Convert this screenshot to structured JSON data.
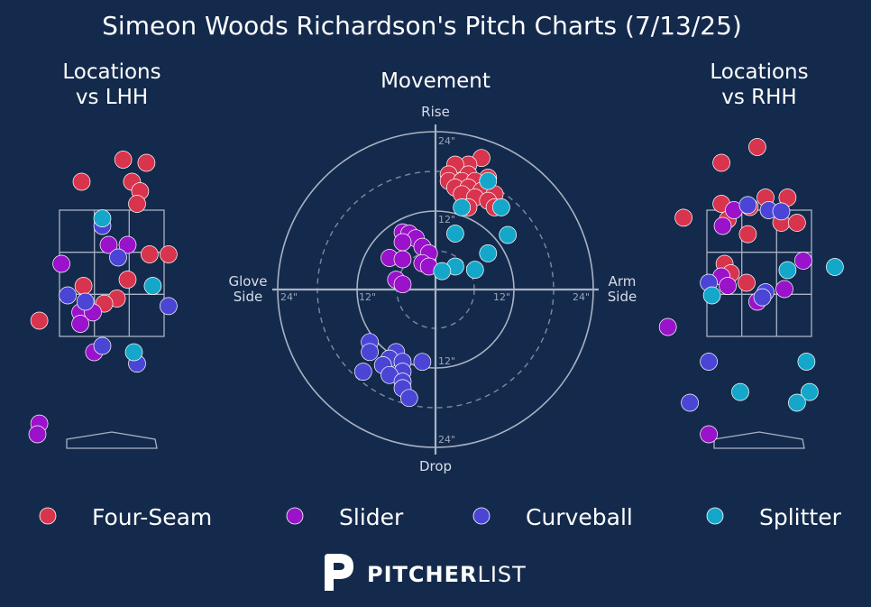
{
  "title": "Simeon Woods Richardson's Pitch Charts (7/13/25)",
  "colors": {
    "background": "#142a4c",
    "Four-Seam": "#d9344d",
    "Slider": "#9a12c9",
    "Curveball": "#4b45d6",
    "Splitter": "#15a7c9"
  },
  "panels": {
    "lhh": {
      "title_line1": "Locations",
      "title_line2": "vs LHH"
    },
    "movement": {
      "title": "Movement",
      "rise": "Rise",
      "drop": "Drop",
      "glove_line1": "Glove",
      "glove_line2": "Side",
      "arm_line1": "Arm",
      "arm_line2": "Side",
      "rings": {
        "top24": "24\"",
        "top12": "12\"",
        "bottom12": "12\"",
        "bottom24": "24\"",
        "left24": "24\"",
        "left12": "12\"",
        "right12": "12\"",
        "right24": "24\""
      }
    },
    "rhh": {
      "title_line1": "Locations",
      "title_line2": "vs RHH"
    }
  },
  "legend": [
    "Four-Seam",
    "Slider",
    "Curveball",
    "Splitter"
  ],
  "brand": {
    "bold": "PITCHER",
    "light": "LIST"
  },
  "chart_data": [
    {
      "type": "scatter",
      "title": "Locations vs LHH",
      "xlim": [
        -2.2,
        2.2
      ],
      "ylim": [
        -0.5,
        5.0
      ],
      "strike_zone": {
        "x": [
          -0.83,
          0.83
        ],
        "y": [
          1.5,
          3.5
        ]
      },
      "series": [
        {
          "name": "Four-Seam",
          "points": [
            [
              0.18,
              4.3
            ],
            [
              0.55,
              4.25
            ],
            [
              -0.48,
              3.95
            ],
            [
              0.32,
              3.95
            ],
            [
              0.45,
              3.8
            ],
            [
              0.4,
              3.6
            ],
            [
              0.6,
              2.8
            ],
            [
              0.9,
              2.8
            ],
            [
              0.25,
              2.4
            ],
            [
              -0.45,
              2.3
            ],
            [
              0.08,
              2.1
            ],
            [
              -0.12,
              2.02
            ],
            [
              -1.15,
              1.75
            ]
          ]
        },
        {
          "name": "Slider",
          "points": [
            [
              -0.05,
              2.95
            ],
            [
              0.25,
              2.95
            ],
            [
              -0.8,
              2.65
            ],
            [
              -0.5,
              1.88
            ],
            [
              -0.3,
              1.88
            ],
            [
              -0.5,
              1.7
            ],
            [
              -0.28,
              1.25
            ],
            [
              -1.15,
              0.12
            ],
            [
              -1.18,
              -0.05
            ]
          ]
        },
        {
          "name": "Curveball",
          "points": [
            [
              -0.15,
              3.25
            ],
            [
              0.1,
              2.75
            ],
            [
              -0.7,
              2.15
            ],
            [
              -0.42,
              2.05
            ],
            [
              0.9,
              1.98
            ],
            [
              -0.15,
              1.35
            ],
            [
              0.4,
              1.07
            ]
          ]
        },
        {
          "name": "Splitter",
          "points": [
            [
              -0.15,
              3.37
            ],
            [
              0.65,
              2.3
            ],
            [
              0.35,
              1.25
            ]
          ]
        }
      ]
    },
    {
      "type": "scatter",
      "title": "Movement",
      "xlabel_left": "Glove Side",
      "xlabel_right": "Arm Side",
      "ylabel_top": "Rise",
      "ylabel_bottom": "Drop",
      "xlim": [
        -24,
        24
      ],
      "ylim": [
        -24,
        24
      ],
      "series": [
        {
          "name": "Four-Seam",
          "points": [
            [
              7,
              20
            ],
            [
              5,
              19
            ],
            [
              3,
              19
            ],
            [
              2,
              17.5
            ],
            [
              5,
              17.5
            ],
            [
              8,
              17
            ],
            [
              2,
              16.5
            ],
            [
              4,
              16.5
            ],
            [
              6,
              16.5
            ],
            [
              3,
              15.5
            ],
            [
              5,
              15.5
            ],
            [
              7,
              15
            ],
            [
              9,
              14.5
            ],
            [
              4,
              14.5
            ],
            [
              6,
              14
            ],
            [
              8,
              13.5
            ],
            [
              9,
              12.5
            ],
            [
              5,
              12.5
            ]
          ]
        },
        {
          "name": "Slider",
          "points": [
            [
              -5,
              8.7
            ],
            [
              -4,
              8.5
            ],
            [
              -3,
              7.8
            ],
            [
              -5,
              7.2
            ],
            [
              -2,
              6.5
            ],
            [
              -1,
              5.5
            ],
            [
              -7,
              4.8
            ],
            [
              -5,
              4.6
            ],
            [
              -2,
              4
            ],
            [
              -1,
              3.5
            ],
            [
              -6,
              1.5
            ],
            [
              -5,
              0.8
            ]
          ]
        },
        {
          "name": "Curveball",
          "points": [
            [
              -10,
              -8
            ],
            [
              -10,
              -9.5
            ],
            [
              -6,
              -9.5
            ],
            [
              -7,
              -10.5
            ],
            [
              -5,
              -11
            ],
            [
              -2,
              -11
            ],
            [
              -8,
              -11.5
            ],
            [
              -11,
              -12.5
            ],
            [
              -5,
              -12.5
            ],
            [
              -7,
              -13
            ],
            [
              -5,
              -14
            ],
            [
              -5,
              -15
            ],
            [
              -4,
              -16.5
            ]
          ]
        },
        {
          "name": "Splitter",
          "points": [
            [
              8,
              16.5
            ],
            [
              10,
              12.5
            ],
            [
              4,
              12.5
            ],
            [
              3,
              8.5
            ],
            [
              11,
              8.3
            ],
            [
              8,
              5.5
            ],
            [
              3,
              3.5
            ],
            [
              6,
              3
            ],
            [
              1,
              2.8
            ]
          ]
        }
      ]
    },
    {
      "type": "scatter",
      "title": "Locations vs RHH",
      "xlim": [
        -2.2,
        2.2
      ],
      "ylim": [
        -0.5,
        5.0
      ],
      "strike_zone": {
        "x": [
          -0.83,
          0.83
        ],
        "y": [
          1.5,
          3.5
        ]
      },
      "series": [
        {
          "name": "Four-Seam",
          "points": [
            [
              -0.03,
              4.5
            ],
            [
              -0.6,
              4.25
            ],
            [
              -0.6,
              3.6
            ],
            [
              -0.15,
              3.55
            ],
            [
              0.1,
              3.7
            ],
            [
              0.45,
              3.7
            ],
            [
              -0.5,
              3.35
            ],
            [
              0.35,
              3.3
            ],
            [
              0.6,
              3.3
            ],
            [
              -1.2,
              3.38
            ],
            [
              -0.18,
              3.12
            ],
            [
              -0.55,
              2.65
            ],
            [
              -0.45,
              2.5
            ],
            [
              -0.2,
              2.35
            ]
          ]
        },
        {
          "name": "Slider",
          "points": [
            [
              -0.4,
              3.5
            ],
            [
              -0.58,
              3.25
            ],
            [
              0.7,
              2.7
            ],
            [
              -0.6,
              2.45
            ],
            [
              -0.5,
              2.3
            ],
            [
              0.4,
              2.25
            ],
            [
              -0.03,
              2.05
            ],
            [
              -1.45,
              1.65
            ],
            [
              -0.8,
              -0.05
            ]
          ]
        },
        {
          "name": "Curveball",
          "points": [
            [
              -0.18,
              3.58
            ],
            [
              0.15,
              3.5
            ],
            [
              0.35,
              3.48
            ],
            [
              -0.8,
              2.35
            ],
            [
              0.1,
              2.2
            ],
            [
              0.05,
              2.12
            ],
            [
              -0.8,
              1.1
            ],
            [
              -1.1,
              0.45
            ]
          ]
        },
        {
          "name": "Splitter",
          "points": [
            [
              0.45,
              2.55
            ],
            [
              1.2,
              2.6
            ],
            [
              -0.75,
              2.15
            ],
            [
              0.75,
              1.1
            ],
            [
              -0.3,
              0.62
            ],
            [
              0.8,
              0.62
            ],
            [
              0.6,
              0.45
            ]
          ]
        }
      ]
    }
  ]
}
